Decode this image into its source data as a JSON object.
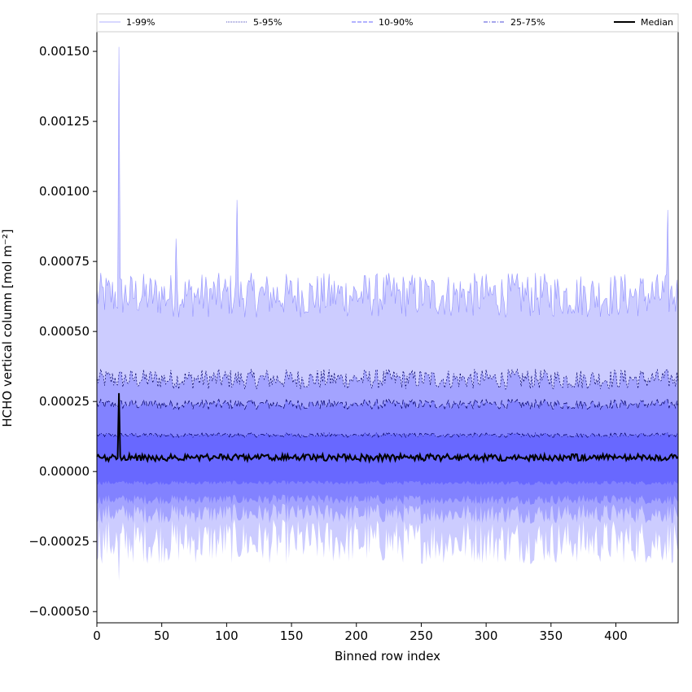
{
  "chart_data": {
    "type": "area",
    "xlabel": "Binned row index",
    "ylabel": "HCHO vertical column [mol m⁻²]",
    "xlim": [
      0,
      448
    ],
    "ylim": [
      -0.00054,
      0.00157
    ],
    "xticks": [
      0,
      50,
      100,
      150,
      200,
      250,
      300,
      350,
      400
    ],
    "yticks": [
      -0.0005,
      -0.00025,
      0.0,
      0.00025,
      0.0005,
      0.00075,
      0.001,
      0.00125,
      0.0015
    ],
    "ytick_labels": [
      "−0.00050",
      "−0.00025",
      "0.00000",
      "0.00025",
      "0.00050",
      "0.00075",
      "0.00100",
      "0.00125",
      "0.00150"
    ],
    "grid": false,
    "legend_position": "top (above plot)",
    "colors": {
      "band": "#0000ff",
      "median": "#000000"
    },
    "series": [
      {
        "name": "1-99%",
        "band_low": -0.00025,
        "band_high": 0.00063,
        "style": "thin solid"
      },
      {
        "name": "5-95%",
        "band_low": -0.00015,
        "band_high": 0.00033,
        "style": "dotted"
      },
      {
        "name": "10-90%",
        "band_low": -0.0001,
        "band_high": 0.00024,
        "style": "dashed"
      },
      {
        "name": "25-75%",
        "band_low": -4e-05,
        "band_high": 0.00013,
        "style": "dash-dot"
      },
      {
        "name": "Median",
        "value": 5e-05,
        "style": "solid thick"
      }
    ],
    "notable_features": [
      {
        "x": 17,
        "upper_1_99": 0.00147,
        "lower_1_99": -0.00043
      },
      {
        "x": 108,
        "upper_1_99": 0.001
      },
      {
        "x": 61,
        "upper_1_99": 0.00089
      },
      {
        "x": 440,
        "upper_1_99": 0.00086
      }
    ]
  }
}
